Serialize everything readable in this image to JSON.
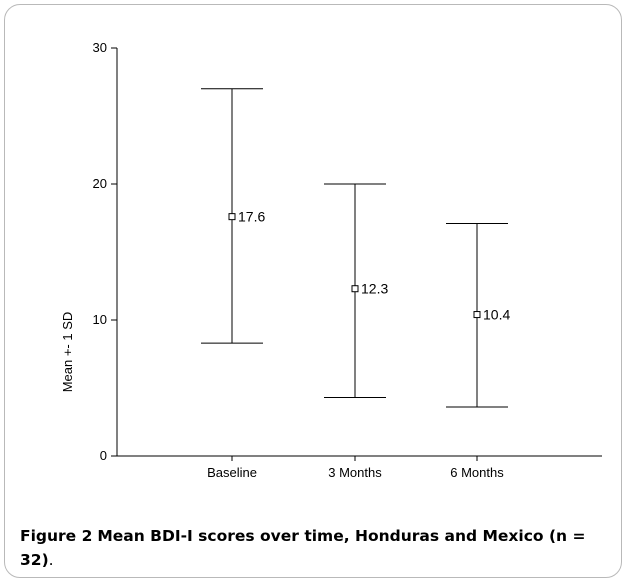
{
  "caption": {
    "label": "Figure 2",
    "title": "Mean BDI-I scores over time, Honduras and Mexico (n = 32)",
    "end": "."
  },
  "chart_data": {
    "type": "errorbar",
    "title": "",
    "xlabel": "",
    "ylabel": "Mean +- 1 SD",
    "ylim": [
      0,
      30
    ],
    "yticks": [
      0,
      10,
      20,
      30
    ],
    "grid": false,
    "categories": [
      "Baseline",
      "3 Months",
      "6 Months"
    ],
    "points": [
      {
        "category": "Baseline",
        "mean": 17.6,
        "mean_label": "17.6",
        "upper": 27.0,
        "lower": 8.3
      },
      {
        "category": "3 Months",
        "mean": 12.3,
        "mean_label": "12.3",
        "upper": 20.0,
        "lower": 4.3
      },
      {
        "category": "6 Months",
        "mean": 10.4,
        "mean_label": "10.4",
        "upper": 17.1,
        "lower": 3.6
      }
    ]
  }
}
